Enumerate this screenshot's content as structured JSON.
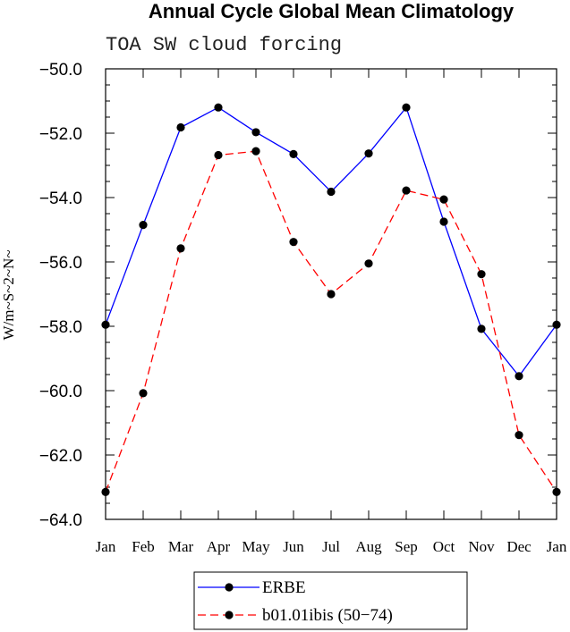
{
  "chart_data": {
    "type": "line",
    "title": "Annual Cycle Global Mean Climatology",
    "subtitle": "TOA SW cloud forcing",
    "xlabel": "",
    "ylabel": "W/m~S~2~N~",
    "categories": [
      "Jan",
      "Feb",
      "Mar",
      "Apr",
      "May",
      "Jun",
      "Jul",
      "Aug",
      "Sep",
      "Oct",
      "Nov",
      "Dec",
      "Jan"
    ],
    "ylim": [
      -64.0,
      -50.0
    ],
    "yticks": [
      -50.0,
      -52.0,
      -54.0,
      -56.0,
      -58.0,
      -60.0,
      -62.0,
      -64.0
    ],
    "ytick_labels": [
      "−50.0",
      "−52.0",
      "−54.0",
      "−56.0",
      "−58.0",
      "−60.0",
      "−62.0",
      "−64.0"
    ],
    "series": [
      {
        "name": "ERBE",
        "color": "#0000ff",
        "dash": "solid",
        "values": [
          -57.95,
          -54.85,
          -51.82,
          -51.2,
          -51.97,
          -52.65,
          -53.82,
          -52.63,
          -51.2,
          -54.75,
          -58.08,
          -59.55,
          -57.95
        ]
      },
      {
        "name": "b01.01ibis (50−74)",
        "color": "#ff0000",
        "dash": "dashed",
        "values": [
          -63.15,
          -60.08,
          -55.58,
          -52.68,
          -52.56,
          -55.38,
          -57.0,
          -56.05,
          -53.78,
          -54.06,
          -56.38,
          -61.38,
          -63.15
        ]
      }
    ],
    "legend": [
      "ERBE",
      "b01.01ibis (50−74)"
    ],
    "legend_position": "bottom-center",
    "grid": false
  }
}
